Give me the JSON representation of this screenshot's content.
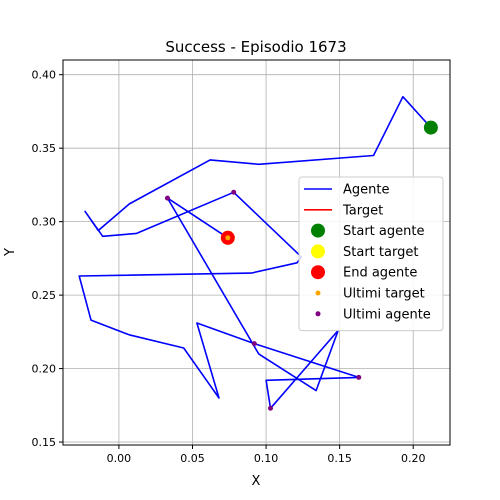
{
  "chart_data": {
    "type": "line",
    "title": "Success - Episodio 1673",
    "xlabel": "X",
    "ylabel": "Y",
    "xlim": [
      -0.038,
      0.225
    ],
    "ylim": [
      0.148,
      0.41
    ],
    "x_ticks": [
      0.0,
      0.05,
      0.1,
      0.15,
      0.2
    ],
    "x_tick_labels": [
      "0.00",
      "0.05",
      "0.10",
      "0.15",
      "0.20"
    ],
    "y_ticks": [
      0.15,
      0.2,
      0.25,
      0.3,
      0.35,
      0.4
    ],
    "y_tick_labels": [
      "0.15",
      "0.20",
      "0.25",
      "0.30",
      "0.35",
      "0.40"
    ],
    "grid": true,
    "legend_position": "center-right",
    "legend": [
      {
        "label": "Agente",
        "kind": "line",
        "color": "#0000ff"
      },
      {
        "label": "Target",
        "kind": "line",
        "color": "#ff0000"
      },
      {
        "label": "Start agente",
        "kind": "marker-large",
        "color": "#008000"
      },
      {
        "label": "Start target",
        "kind": "marker-large",
        "color": "#ffff00"
      },
      {
        "label": "End agente",
        "kind": "marker-large",
        "color": "#ff0000"
      },
      {
        "label": "Ultimi target",
        "kind": "marker-small",
        "color": "#ffa500"
      },
      {
        "label": "Ultimi agente",
        "kind": "marker-small",
        "color": "#800080"
      }
    ],
    "series": [
      {
        "name": "Agente",
        "color": "#0000ff",
        "points": [
          [
            0.212,
            0.364
          ],
          [
            0.193,
            0.385
          ],
          [
            0.173,
            0.345
          ],
          [
            0.095,
            0.339
          ],
          [
            0.062,
            0.342
          ],
          [
            0.007,
            0.312
          ],
          [
            -0.014,
            0.294
          ],
          [
            -0.023,
            0.307
          ],
          [
            -0.011,
            0.29
          ],
          [
            0.012,
            0.292
          ],
          [
            0.078,
            0.32
          ],
          [
            0.124,
            0.276
          ],
          [
            0.121,
            0.272
          ],
          [
            0.09,
            0.265
          ],
          [
            -0.027,
            0.263
          ],
          [
            -0.019,
            0.233
          ],
          [
            0.007,
            0.223
          ],
          [
            0.044,
            0.214
          ],
          [
            0.068,
            0.18
          ],
          [
            0.053,
            0.231
          ],
          [
            0.092,
            0.217
          ],
          [
            0.163,
            0.194
          ],
          [
            0.1,
            0.192
          ],
          [
            0.103,
            0.173
          ],
          [
            0.149,
            0.226
          ],
          [
            0.134,
            0.185
          ],
          [
            0.095,
            0.21
          ],
          [
            0.033,
            0.316
          ],
          [
            0.074,
            0.289
          ]
        ]
      }
    ],
    "start_agente": [
      0.212,
      0.364
    ],
    "start_target": [
      0.074,
      0.289
    ],
    "end_agente": [
      0.074,
      0.289
    ],
    "ultimi_target": [
      [
        0.074,
        0.289
      ]
    ],
    "ultimi_agente": [
      [
        0.078,
        0.32
      ],
      [
        0.033,
        0.316
      ],
      [
        0.092,
        0.217
      ],
      [
        0.163,
        0.194
      ],
      [
        0.103,
        0.173
      ]
    ]
  }
}
